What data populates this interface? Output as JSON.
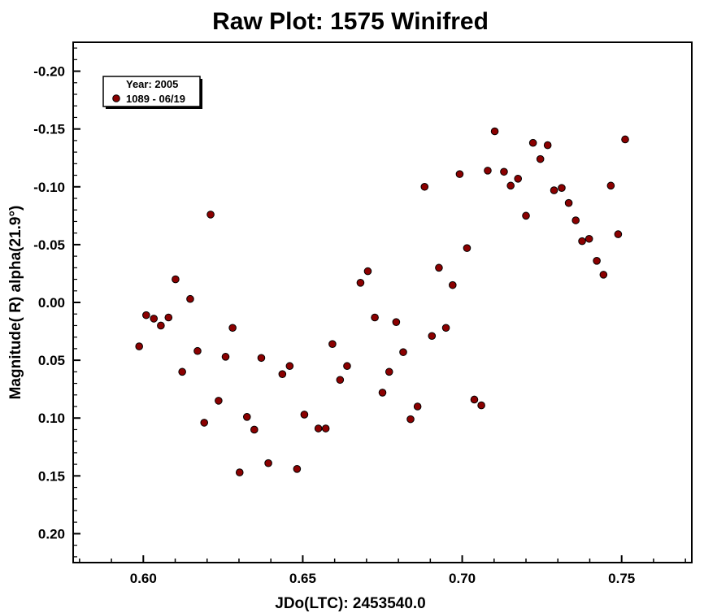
{
  "chart_data": {
    "type": "scatter",
    "title": "Raw Plot: 1575 Winifred",
    "xlabel": "JDo(LTC): 2453540.0",
    "ylabel": "Magnitude( R) alpha(21.9°)",
    "xlim": [
      0.578,
      0.772
    ],
    "ylim": [
      -0.225,
      0.225
    ],
    "y_inverted": true,
    "x_ticks": [
      0.6,
      0.65,
      0.7,
      0.75
    ],
    "x_tick_labels": [
      "0.60",
      "0.65",
      "0.70",
      "0.75"
    ],
    "y_ticks": [
      -0.2,
      -0.15,
      -0.1,
      -0.05,
      0.0,
      0.05,
      0.1,
      0.15,
      0.2
    ],
    "y_tick_labels": [
      "-0.20",
      "-0.15",
      "-0.10",
      "-0.05",
      "0.00",
      "0.05",
      "0.10",
      "0.15",
      "0.20"
    ],
    "grid": false,
    "legend": {
      "placement": "top-left",
      "header": "Year: 2005",
      "entries": [
        "1089 - 06/19"
      ]
    },
    "marker_color": "#8B0000",
    "series": [
      {
        "name": "1089 - 06/19",
        "points": [
          [
            0.5987,
            0.038
          ],
          [
            0.6009,
            0.011
          ],
          [
            0.6033,
            0.014
          ],
          [
            0.6055,
            0.02
          ],
          [
            0.6079,
            0.013
          ],
          [
            0.6101,
            -0.02
          ],
          [
            0.6122,
            0.06
          ],
          [
            0.6147,
            -0.003
          ],
          [
            0.617,
            0.042
          ],
          [
            0.6191,
            0.104
          ],
          [
            0.6211,
            -0.076
          ],
          [
            0.6236,
            0.085
          ],
          [
            0.6258,
            0.047
          ],
          [
            0.628,
            0.022
          ],
          [
            0.6302,
            0.147
          ],
          [
            0.6325,
            0.099
          ],
          [
            0.6348,
            0.11
          ],
          [
            0.637,
            0.048
          ],
          [
            0.6392,
            0.139
          ],
          [
            0.6436,
            0.062
          ],
          [
            0.6459,
            0.055
          ],
          [
            0.6482,
            0.144
          ],
          [
            0.6505,
            0.097
          ],
          [
            0.6549,
            0.109
          ],
          [
            0.6572,
            0.109
          ],
          [
            0.6593,
            0.036
          ],
          [
            0.6617,
            0.067
          ],
          [
            0.6639,
            0.055
          ],
          [
            0.6681,
            -0.017
          ],
          [
            0.6704,
            -0.027
          ],
          [
            0.6726,
            0.013
          ],
          [
            0.675,
            0.078
          ],
          [
            0.6771,
            0.06
          ],
          [
            0.6793,
            0.017
          ],
          [
            0.6815,
            0.043
          ],
          [
            0.6838,
            0.101
          ],
          [
            0.686,
            0.09
          ],
          [
            0.6882,
            -0.1
          ],
          [
            0.6905,
            0.029
          ],
          [
            0.6927,
            -0.03
          ],
          [
            0.6949,
            0.022
          ],
          [
            0.697,
            -0.015
          ],
          [
            0.6992,
            -0.111
          ],
          [
            0.7015,
            -0.047
          ],
          [
            0.7038,
            0.084
          ],
          [
            0.706,
            0.089
          ],
          [
            0.708,
            -0.114
          ],
          [
            0.7102,
            -0.148
          ],
          [
            0.7131,
            -0.113
          ],
          [
            0.7152,
            -0.101
          ],
          [
            0.7175,
            -0.107
          ],
          [
            0.72,
            -0.075
          ],
          [
            0.7222,
            -0.138
          ],
          [
            0.7245,
            -0.124
          ],
          [
            0.7268,
            -0.136
          ],
          [
            0.7288,
            -0.097
          ],
          [
            0.7312,
            -0.099
          ],
          [
            0.7334,
            -0.086
          ],
          [
            0.7356,
            -0.071
          ],
          [
            0.7376,
            -0.053
          ],
          [
            0.7398,
            -0.055
          ],
          [
            0.7422,
            -0.036
          ],
          [
            0.7443,
            -0.024
          ],
          [
            0.7466,
            -0.101
          ],
          [
            0.7489,
            -0.059
          ],
          [
            0.7511,
            -0.141
          ]
        ]
      }
    ]
  }
}
